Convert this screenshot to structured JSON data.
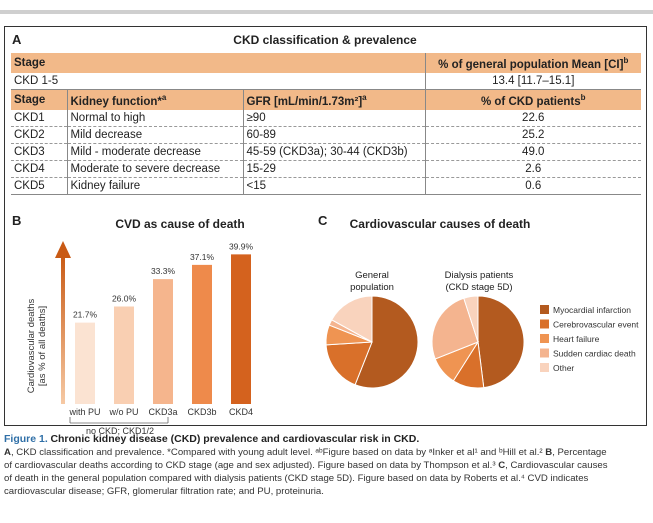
{
  "panel_a": {
    "letter": "A",
    "title": "CKD classification & prevalence",
    "header1": {
      "stage": "Stage",
      "prevalence": "% of general population Mean [CI]",
      "sup": "b"
    },
    "overall": {
      "stage": "CKD 1-5",
      "value": "13.4 [11.7–15.1]"
    },
    "header2": {
      "stage": "Stage",
      "function": "Kidney function*",
      "function_sup": "a",
      "gfr": "GFR [mL/min/1.73m²]",
      "gfr_sup": "a",
      "pct": "% of CKD patients",
      "pct_sup": "b"
    },
    "rows": [
      {
        "stage": "CKD1",
        "function": "Normal to high",
        "gfr": "≥90",
        "pct": "22.6"
      },
      {
        "stage": "CKD2",
        "function": "Mild decrease",
        "gfr": "60-89",
        "pct": "25.2"
      },
      {
        "stage": "CKD3",
        "function": "Mild - moderate decrease",
        "gfr": "45-59 (CKD3a); 30-44 (CKD3b)",
        "pct": "49.0"
      },
      {
        "stage": "CKD4",
        "function": "Moderate to severe decrease",
        "gfr": "15-29",
        "pct": "2.6"
      },
      {
        "stage": "CKD5",
        "function": "Kidney failure",
        "gfr": "<15",
        "pct": "0.6"
      }
    ]
  },
  "panel_b": {
    "letter": "B",
    "title": "CVD as cause of death",
    "ylabel_line1": "Cardiovascular deaths",
    "ylabel_line2": "[as % of all deaths]",
    "group_label": "no CKD; CKD1/2",
    "chart_data": {
      "type": "bar",
      "categories": [
        "with PU",
        "w/o PU",
        "CKD3a",
        "CKD3b",
        "CKD4"
      ],
      "values": [
        21.7,
        26.0,
        33.3,
        37.1,
        39.9
      ],
      "value_labels": [
        "21.7%",
        "26.0%",
        "33.3%",
        "37.1%",
        "39.9%"
      ],
      "colors": [
        "#fbe3d2",
        "#f9cfb2",
        "#f5b58d",
        "#ee8a4b",
        "#d4621e"
      ],
      "title": "CVD as cause of death",
      "ylabel": "Cardiovascular deaths [as % of all deaths]",
      "ylim": [
        0,
        40
      ]
    }
  },
  "panel_c": {
    "letter": "C",
    "title": "Cardiovascular causes of death",
    "pie1_label_line1": "General",
    "pie1_label_line2": "population",
    "pie2_label_line1": "Dialysis patients",
    "pie2_label_line2": "(CKD stage 5D)",
    "chart_data": {
      "type": "pie",
      "categories": [
        "Myocardial infarction",
        "Cerebrovascular event",
        "Heart failure",
        "Sudden cardiac death",
        "Other"
      ],
      "colors": [
        "#b35a1f",
        "#d9702a",
        "#ef9452",
        "#f4b48f",
        "#f9d3bd"
      ],
      "series": [
        {
          "name": "General population",
          "values": [
            56,
            18,
            7,
            2,
            17
          ]
        },
        {
          "name": "Dialysis patients (CKD stage 5D)",
          "values": [
            48,
            11,
            10,
            26,
            5
          ]
        }
      ]
    }
  },
  "caption": {
    "title": "Figure 1.",
    "title_rest": "Chronic kidney disease (CKD) prevalence and cardiovascular risk in CKD.",
    "a_letter": "A",
    "line1": ", CKD classification and prevalence. *Compared with young adult level. ᵃᵇFigure based on data by ᵃInker et al¹ and ᵇHill et al.² ",
    "b_letter": "B",
    "line1b": ", Percentage",
    "line2": "of cardiovascular deaths according to CKD stage (age and sex adjusted). Figure based on data by Thompson et al.³ ",
    "c_letter": "C",
    "line2b": ", Cardiovascular causes",
    "line3": "of death in the general population compared with dialysis patients (CKD stage 5D). Figure based on data by Roberts et al.⁴ CVD indicates",
    "line4": "cardiovascular disease; GFR, glomerular filtration rate; and PU, proteinuria."
  }
}
